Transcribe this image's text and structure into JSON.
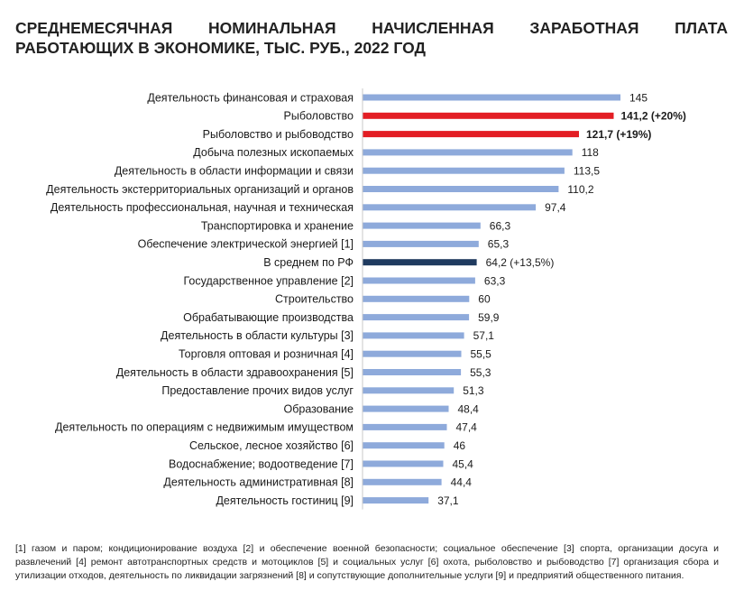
{
  "title_line1": "СРЕДНЕМЕСЯЧНАЯ НОМИНАЛЬНАЯ НАЧИСЛЕННАЯ ЗАРАБОТНАЯ ПЛАТА",
  "title_line2": "РАБОТАЮЩИХ В ЭКОНОМИКЕ, ТЫС. РУБ., 2022 ГОД",
  "footnote": "[1] газом и паром; кондиционирование воздуха [2] и обеспечение военной безопасности; социальное обеспечение [3] спорта, организации досуга и развлечений [4] ремонт автотранспортных средств и мотоциклов [5] и социальных услуг [6] охота, рыболовство и рыбоводство [7] организация сбора и утилизации отходов, деятельность по ликвидации загрязнений [8] и сопутствующие дополнительные услуги [9] и предприятий общественного питания.",
  "colors": {
    "default": "#8eaadb",
    "highlight": "#e31e24",
    "average": "#1f3a5f"
  },
  "chart_data": {
    "type": "bar",
    "orientation": "horizontal",
    "title": "СРЕДНЕМЕСЯЧНАЯ НОМИНАЛЬНАЯ НАЧИСЛЕННАЯ ЗАРАБОТНАЯ ПЛАТА РАБОТАЮЩИХ В ЭКОНОМИКЕ, ТЫС. РУБ., 2022 ГОД",
    "xlim": [
      0,
      145
    ],
    "grid": false,
    "bars": [
      {
        "category": "Деятельность финансовая и страховая",
        "value": 145,
        "label": "145",
        "style": "default"
      },
      {
        "category": "Рыболовство",
        "value": 141.2,
        "label": "141,2 (+20%)",
        "style": "highlight"
      },
      {
        "category": "Рыболовство и рыбоводство",
        "value": 121.7,
        "label": "121,7 (+19%)",
        "style": "highlight"
      },
      {
        "category": "Добыча полезных ископаемых",
        "value": 118,
        "label": "118",
        "style": "default"
      },
      {
        "category": "Деятельность в области информации и связи",
        "value": 113.5,
        "label": "113,5",
        "style": "default"
      },
      {
        "category": "Деятельность экстерриториальных организаций и органов",
        "value": 110.2,
        "label": "110,2",
        "style": "default"
      },
      {
        "category": "Деятельность профессиональная, научная и техническая",
        "value": 97.4,
        "label": "97,4",
        "style": "default"
      },
      {
        "category": "Транспортировка и хранение",
        "value": 66.3,
        "label": "66,3",
        "style": "default"
      },
      {
        "category": "Обеспечение электрической энергией [1]",
        "value": 65.3,
        "label": "65,3",
        "style": "default"
      },
      {
        "category": "В среднем по РФ",
        "value": 64.2,
        "label": "64,2 (+13,5%)",
        "style": "average"
      },
      {
        "category": "Государственное управление [2]",
        "value": 63.3,
        "label": "63,3",
        "style": "default"
      },
      {
        "category": "Строительство",
        "value": 60,
        "label": "60",
        "style": "default"
      },
      {
        "category": "Обрабатывающие производства",
        "value": 59.9,
        "label": "59,9",
        "style": "default"
      },
      {
        "category": "Деятельность в области культуры [3]",
        "value": 57.1,
        "label": "57,1",
        "style": "default"
      },
      {
        "category": "Торговля оптовая и розничная [4]",
        "value": 55.5,
        "label": "55,5",
        "style": "default"
      },
      {
        "category": "Деятельность в области здравоохранения [5]",
        "value": 55.3,
        "label": "55,3",
        "style": "default"
      },
      {
        "category": "Предоставление прочих видов услуг",
        "value": 51.3,
        "label": "51,3",
        "style": "default"
      },
      {
        "category": "Образование",
        "value": 48.4,
        "label": "48,4",
        "style": "default"
      },
      {
        "category": "Деятельность по операциям с недвижимым имуществом",
        "value": 47.4,
        "label": "47,4",
        "style": "default"
      },
      {
        "category": "Сельское, лесное хозяйство [6]",
        "value": 46,
        "label": "46",
        "style": "default"
      },
      {
        "category": "Водоснабжение; водоотведение [7]",
        "value": 45.4,
        "label": "45,4",
        "style": "default"
      },
      {
        "category": "Деятельность административная [8]",
        "value": 44.4,
        "label": "44,4",
        "style": "default"
      },
      {
        "category": "Деятельность гостиниц [9]",
        "value": 37.1,
        "label": "37,1",
        "style": "default"
      }
    ]
  }
}
